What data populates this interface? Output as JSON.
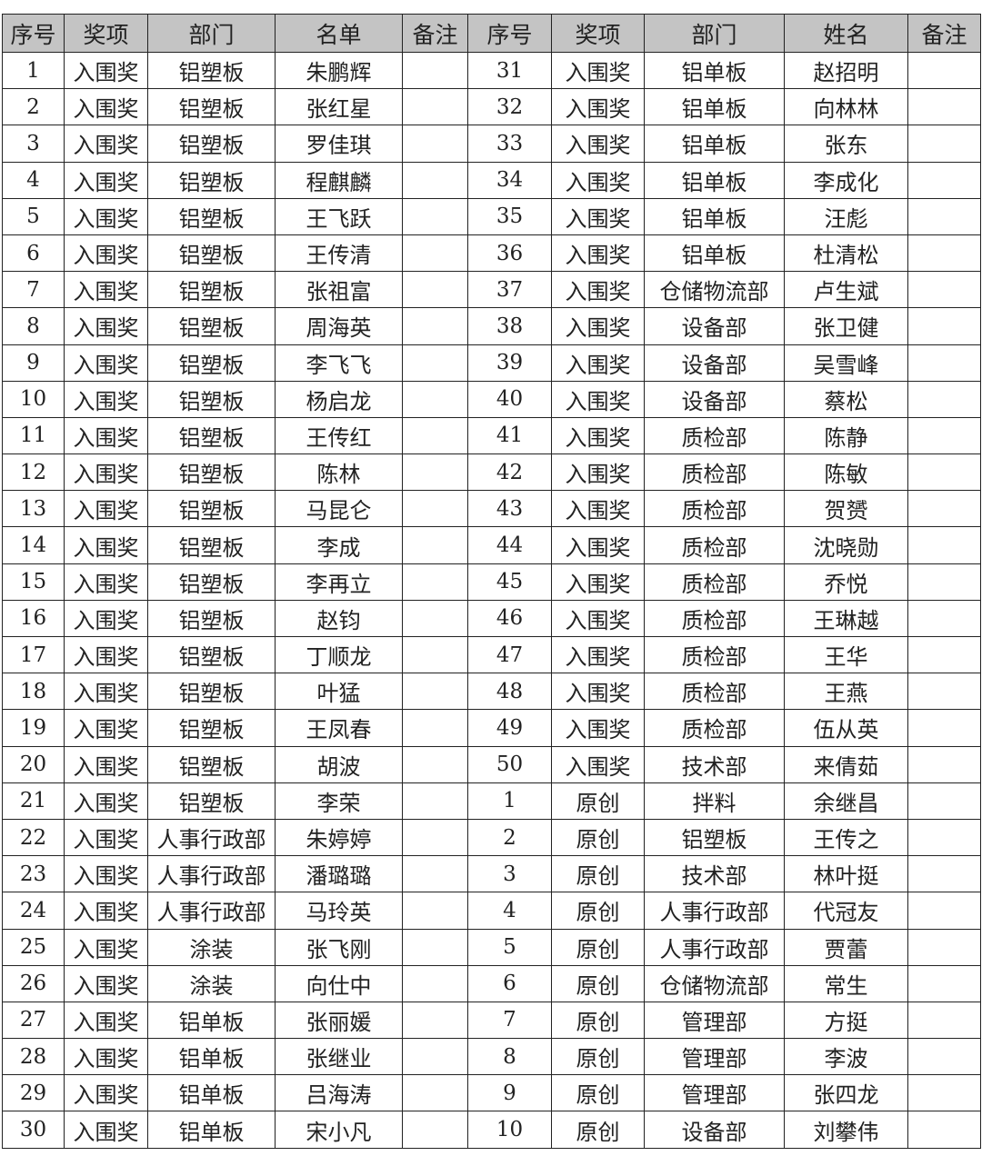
{
  "headers": [
    "序号",
    "奖项",
    "部门",
    "名单",
    "备注",
    "序号",
    "奖项",
    "部门",
    "姓名",
    "备注"
  ],
  "left_rows": [
    [
      "1",
      "入围奖",
      "铝塑板",
      "朱鹏辉",
      ""
    ],
    [
      "2",
      "入围奖",
      "铝塑板",
      "张红星",
      ""
    ],
    [
      "3",
      "入围奖",
      "铝塑板",
      "罗佳琪",
      ""
    ],
    [
      "4",
      "入围奖",
      "铝塑板",
      "程麒麟",
      ""
    ],
    [
      "5",
      "入围奖",
      "铝塑板",
      "王飞跃",
      ""
    ],
    [
      "6",
      "入围奖",
      "铝塑板",
      "王传清",
      ""
    ],
    [
      "7",
      "入围奖",
      "铝塑板",
      "张祖富",
      ""
    ],
    [
      "8",
      "入围奖",
      "铝塑板",
      "周海英",
      ""
    ],
    [
      "9",
      "入围奖",
      "铝塑板",
      "李飞飞",
      ""
    ],
    [
      "10",
      "入围奖",
      "铝塑板",
      "杨启龙",
      ""
    ],
    [
      "11",
      "入围奖",
      "铝塑板",
      "王传红",
      ""
    ],
    [
      "12",
      "入围奖",
      "铝塑板",
      "陈林",
      ""
    ],
    [
      "13",
      "入围奖",
      "铝塑板",
      "马昆仑",
      ""
    ],
    [
      "14",
      "入围奖",
      "铝塑板",
      "李成",
      ""
    ],
    [
      "15",
      "入围奖",
      "铝塑板",
      "李再立",
      ""
    ],
    [
      "16",
      "入围奖",
      "铝塑板",
      "赵钧",
      ""
    ],
    [
      "17",
      "入围奖",
      "铝塑板",
      "丁顺龙",
      ""
    ],
    [
      "18",
      "入围奖",
      "铝塑板",
      "叶猛",
      ""
    ],
    [
      "19",
      "入围奖",
      "铝塑板",
      "王凤春",
      ""
    ],
    [
      "20",
      "入围奖",
      "铝塑板",
      "胡波",
      ""
    ],
    [
      "21",
      "入围奖",
      "铝塑板",
      "李荣",
      ""
    ],
    [
      "22",
      "入围奖",
      "人事行政部",
      "朱婷婷",
      ""
    ],
    [
      "23",
      "入围奖",
      "人事行政部",
      "潘璐璐",
      ""
    ],
    [
      "24",
      "入围奖",
      "人事行政部",
      "马玲英",
      ""
    ],
    [
      "25",
      "入围奖",
      "涂装",
      "张飞刚",
      ""
    ],
    [
      "26",
      "入围奖",
      "涂装",
      "向仕中",
      ""
    ],
    [
      "27",
      "入围奖",
      "铝单板",
      "张丽媛",
      ""
    ],
    [
      "28",
      "入围奖",
      "铝单板",
      "张继业",
      ""
    ],
    [
      "29",
      "入围奖",
      "铝单板",
      "吕海涛",
      ""
    ],
    [
      "30",
      "入围奖",
      "铝单板",
      "宋小凡",
      ""
    ]
  ],
  "right_rows": [
    [
      "31",
      "入围奖",
      "铝单板",
      "赵招明",
      ""
    ],
    [
      "32",
      "入围奖",
      "铝单板",
      "向林林",
      ""
    ],
    [
      "33",
      "入围奖",
      "铝单板",
      "张东",
      ""
    ],
    [
      "34",
      "入围奖",
      "铝单板",
      "李成化",
      ""
    ],
    [
      "35",
      "入围奖",
      "铝单板",
      "汪彪",
      ""
    ],
    [
      "36",
      "入围奖",
      "铝单板",
      "杜清松",
      ""
    ],
    [
      "37",
      "入围奖",
      "仓储物流部",
      "卢生斌",
      ""
    ],
    [
      "38",
      "入围奖",
      "设备部",
      "张卫健",
      ""
    ],
    [
      "39",
      "入围奖",
      "设备部",
      "吴雪峰",
      ""
    ],
    [
      "40",
      "入围奖",
      "设备部",
      "蔡松",
      ""
    ],
    [
      "41",
      "入围奖",
      "质检部",
      "陈静",
      ""
    ],
    [
      "42",
      "入围奖",
      "质检部",
      "陈敏",
      ""
    ],
    [
      "43",
      "入围奖",
      "质检部",
      "贺赟",
      ""
    ],
    [
      "44",
      "入围奖",
      "质检部",
      "沈晓勋",
      ""
    ],
    [
      "45",
      "入围奖",
      "质检部",
      "乔悦",
      ""
    ],
    [
      "46",
      "入围奖",
      "质检部",
      "王琳越",
      ""
    ],
    [
      "47",
      "入围奖",
      "质检部",
      "王华",
      ""
    ],
    [
      "48",
      "入围奖",
      "质检部",
      "王燕",
      ""
    ],
    [
      "49",
      "入围奖",
      "质检部",
      "伍从英",
      ""
    ],
    [
      "50",
      "入围奖",
      "技术部",
      "来倩茹",
      ""
    ],
    [
      "1",
      "原创",
      "拌料",
      "余继昌",
      ""
    ],
    [
      "2",
      "原创",
      "铝塑板",
      "王传之",
      ""
    ],
    [
      "3",
      "原创",
      "技术部",
      "林叶挺",
      ""
    ],
    [
      "4",
      "原创",
      "人事行政部",
      "代冠友",
      ""
    ],
    [
      "5",
      "原创",
      "人事行政部",
      "贾蕾",
      ""
    ],
    [
      "6",
      "原创",
      "仓储物流部",
      "常生",
      ""
    ],
    [
      "7",
      "原创",
      "管理部",
      "方挺",
      ""
    ],
    [
      "8",
      "原创",
      "管理部",
      "李波",
      ""
    ],
    [
      "9",
      "原创",
      "管理部",
      "张四龙",
      ""
    ],
    [
      "10",
      "原创",
      "设备部",
      "刘攀伟",
      ""
    ]
  ]
}
